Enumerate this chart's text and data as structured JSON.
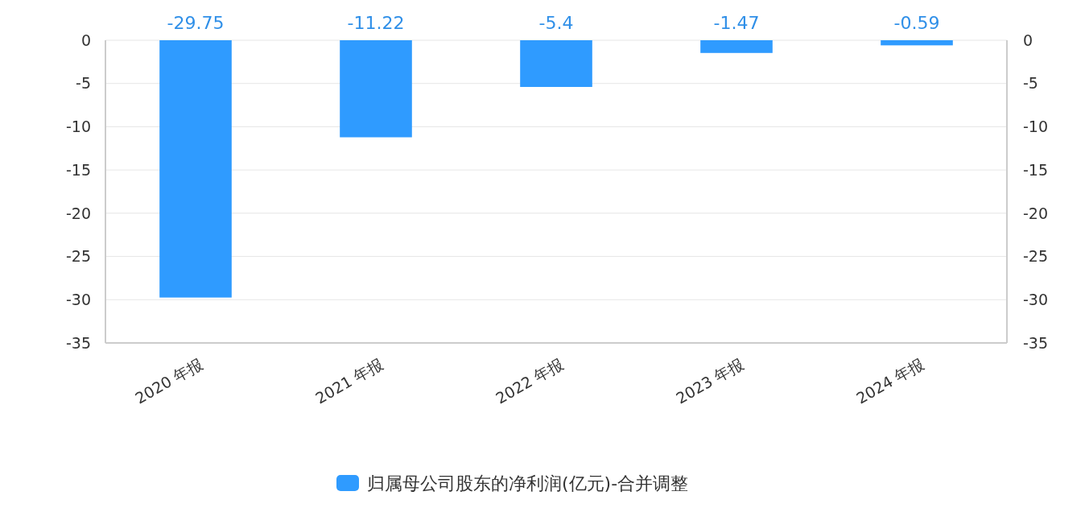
{
  "chart_data": {
    "type": "bar",
    "categories": [
      "2020 年报",
      "2021 年报",
      "2022 年报",
      "2023 年报",
      "2024 年报"
    ],
    "series": [
      {
        "name": "归属母公司股东的净利润(亿元)-合并调整",
        "color": "#2f9bff",
        "values": [
          -29.75,
          -11.22,
          -5.4,
          -1.47,
          -0.59
        ]
      }
    ],
    "ylim": [
      -35,
      0
    ],
    "yticks": [
      -35,
      -30,
      -25,
      -20,
      -15,
      -10,
      -5,
      0
    ],
    "y2lim": [
      -35,
      0
    ],
    "y2ticks": [
      -35,
      -30,
      -25,
      -20,
      -15,
      -10,
      -5,
      0
    ],
    "data_labels": true,
    "grid": "y",
    "legend": "bottom"
  }
}
